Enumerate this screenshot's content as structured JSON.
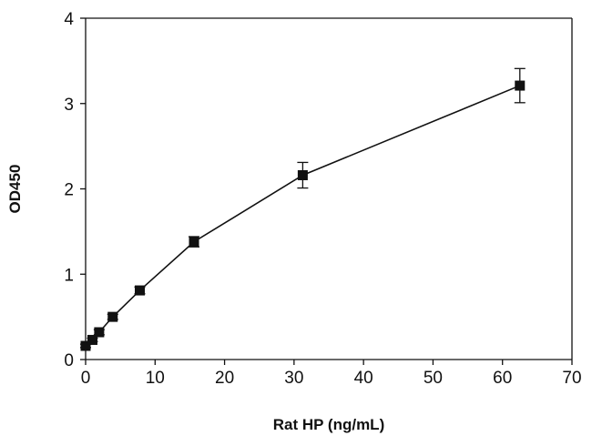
{
  "chart_data": {
    "type": "line",
    "title": "",
    "xlabel": "Rat HP (ng/mL)",
    "ylabel": "OD450",
    "xlim": [
      0,
      70
    ],
    "ylim": [
      0,
      4
    ],
    "x_ticks": [
      0,
      10,
      20,
      30,
      40,
      50,
      60,
      70
    ],
    "y_ticks": [
      0,
      1,
      2,
      3,
      4
    ],
    "grid": false,
    "legend": "none",
    "series": [
      {
        "marker": "square",
        "color": "#111111",
        "x": [
          0,
          0.98,
          1.95,
          3.9,
          7.8,
          15.6,
          31.25,
          62.5
        ],
        "y": [
          0.16,
          0.23,
          0.32,
          0.5,
          0.81,
          1.38,
          2.16,
          3.21
        ],
        "error": [
          0.02,
          0.02,
          0.03,
          0.03,
          0.04,
          0.06,
          0.15,
          0.2
        ]
      }
    ]
  }
}
